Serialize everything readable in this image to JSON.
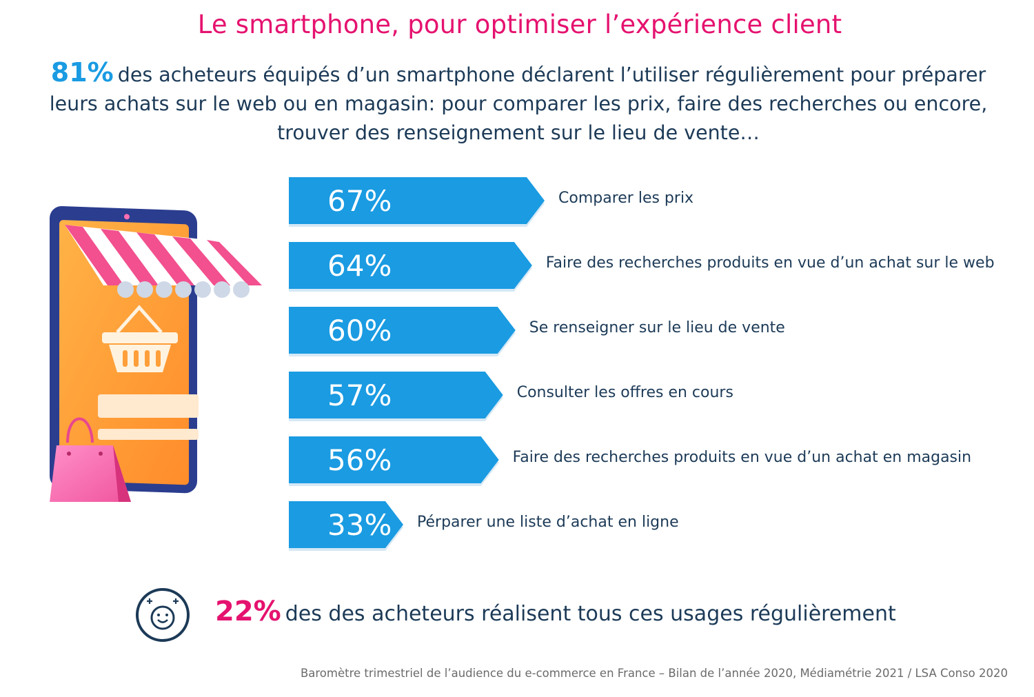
{
  "title": "Le smartphone, pour optimiser l’expérience client",
  "intro": {
    "highlight": "81%",
    "text": "des acheteurs équipés d’un smartphone déclarent l’utiliser régulièrement pour préparer leurs achats sur le web ou en magasin: pour comparer les prix, faire des recherches ou encore, trouver des renseignement sur le lieu de vente…"
  },
  "chart_data": {
    "type": "bar",
    "orientation": "horizontal",
    "categories": [
      "Comparer les prix",
      "Faire des recherches produits en vue d’un achat sur le web",
      "Se renseigner sur le lieu de vente",
      "Consulter les offres en cours",
      "Faire des recherches produits en vue d’un achat en magasin",
      "Pérparer une liste d’achat en ligne"
    ],
    "values": [
      67,
      64,
      60,
      57,
      56,
      33
    ],
    "value_labels": [
      "67%",
      "64%",
      "60%",
      "57%",
      "56%",
      "33%"
    ],
    "grid": false,
    "bar_color": "#1a9be2"
  },
  "footer": {
    "highlight": "22%",
    "text": "des des acheteurs réalisent tous ces usages régulièrement",
    "icon": "smiley-icon"
  },
  "source": "Baromètre trimestriel de l’audience du e-commerce en France – Bilan de l’année 2020, Médiamétrie 2021 / LSA Conso 2020",
  "colors": {
    "accent_pink": "#e5126f",
    "accent_blue": "#1a9be2",
    "text_navy": "#1c3a57"
  },
  "illustration": {
    "icon": "smartphone-shop-icon",
    "bag_icon": "shopping-bag-icon",
    "basket_icon": "basket-icon"
  }
}
